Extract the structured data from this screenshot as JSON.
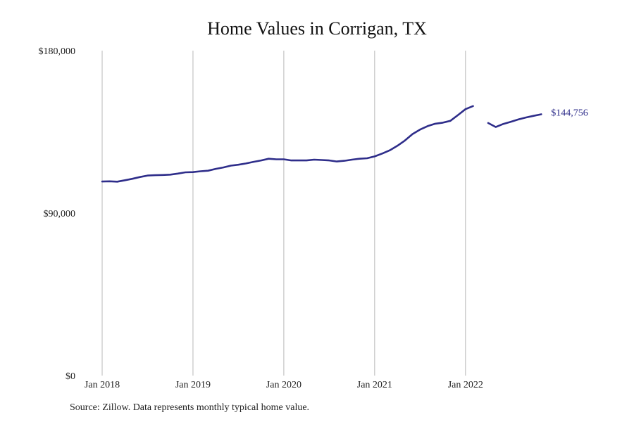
{
  "chart_data": {
    "type": "line",
    "title": "Home Values in Corrigan, TX",
    "source": "Source: Zillow. Data represents monthly typical home value.",
    "xlabel": "",
    "ylabel": "",
    "x_domain": [
      "2018-01",
      "2022-12"
    ],
    "ylim": [
      0,
      180000
    ],
    "y_ticks": [
      {
        "value": 0,
        "label": "$0"
      },
      {
        "value": 90000,
        "label": "$90,000"
      },
      {
        "value": 180000,
        "label": "$180,000"
      }
    ],
    "x_ticks": [
      {
        "value": "2018-01",
        "label": "Jan 2018"
      },
      {
        "value": "2019-01",
        "label": "Jan 2019"
      },
      {
        "value": "2020-01",
        "label": "Jan 2020"
      },
      {
        "value": "2021-01",
        "label": "Jan 2021"
      },
      {
        "value": "2022-01",
        "label": "Jan 2022"
      }
    ],
    "grid": "vertical",
    "line_color": "#2e2d8a",
    "end_label": "$144,756",
    "series": [
      {
        "segments": [
          [
            [
              "2018-01",
              107500
            ],
            [
              "2018-02",
              107600
            ],
            [
              "2018-03",
              107400
            ],
            [
              "2018-04",
              108200
            ],
            [
              "2018-05",
              109000
            ],
            [
              "2018-06",
              110000
            ],
            [
              "2018-07",
              110800
            ],
            [
              "2018-08",
              111000
            ],
            [
              "2018-09",
              111100
            ],
            [
              "2018-10",
              111300
            ],
            [
              "2018-11",
              111900
            ],
            [
              "2018-12",
              112600
            ],
            [
              "2019-01",
              112700
            ],
            [
              "2019-02",
              113200
            ],
            [
              "2019-03",
              113500
            ],
            [
              "2019-04",
              114500
            ],
            [
              "2019-05",
              115300
            ],
            [
              "2019-06",
              116300
            ],
            [
              "2019-07",
              116800
            ],
            [
              "2019-08",
              117500
            ],
            [
              "2019-09",
              118400
            ],
            [
              "2019-10",
              119200
            ],
            [
              "2019-11",
              120100
            ],
            [
              "2019-12",
              119800
            ],
            [
              "2020-01",
              119800
            ],
            [
              "2020-02",
              119200
            ],
            [
              "2020-03",
              119200
            ],
            [
              "2020-04",
              119200
            ],
            [
              "2020-05",
              119600
            ],
            [
              "2020-06",
              119400
            ],
            [
              "2020-07",
              119200
            ],
            [
              "2020-08",
              118600
            ],
            [
              "2020-09",
              119000
            ],
            [
              "2020-10",
              119600
            ],
            [
              "2020-11",
              120100
            ],
            [
              "2020-12",
              120400
            ],
            [
              "2021-01",
              121400
            ],
            [
              "2021-02",
              123000
            ],
            [
              "2021-03",
              124800
            ],
            [
              "2021-04",
              127300
            ],
            [
              "2021-05",
              130200
            ],
            [
              "2021-06",
              133800
            ],
            [
              "2021-07",
              136300
            ],
            [
              "2021-08",
              138200
            ],
            [
              "2021-09",
              139500
            ],
            [
              "2021-10",
              140100
            ],
            [
              "2021-11",
              141100
            ],
            [
              "2021-12",
              144300
            ],
            [
              "2022-01",
              147600
            ],
            [
              "2022-02",
              149300
            ]
          ],
          [
            [
              "2022-04",
              139900
            ],
            [
              "2022-05",
              137700
            ],
            [
              "2022-06",
              139400
            ],
            [
              "2022-07",
              140600
            ],
            [
              "2022-08",
              141900
            ],
            [
              "2022-09",
              143000
            ],
            [
              "2022-10",
              143900
            ],
            [
              "2022-11",
              144756
            ]
          ]
        ]
      }
    ]
  }
}
